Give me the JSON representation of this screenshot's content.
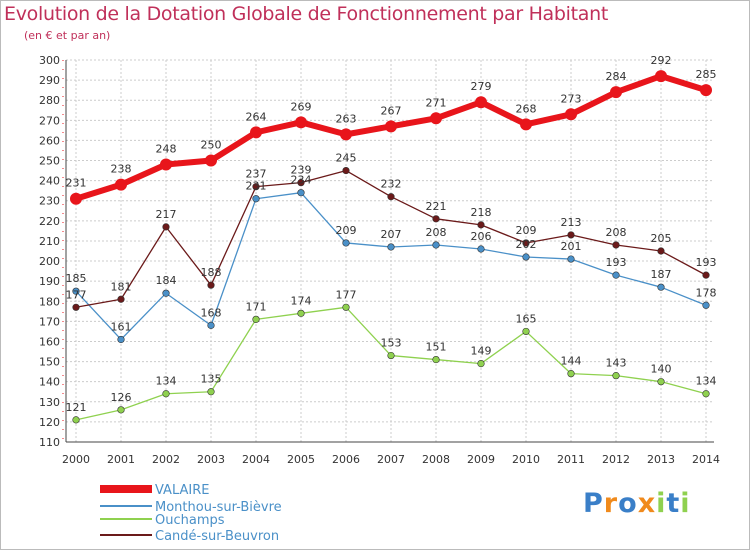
{
  "chart_data": {
    "type": "line",
    "title": "Evolution de la Dotation Globale de Fonctionnement par Habitant",
    "subtitle": "(en € et par an)",
    "x": [
      "2000",
      "2001",
      "2002",
      "2003",
      "2004",
      "2005",
      "2006",
      "2007",
      "2008",
      "2009",
      "2010",
      "2011",
      "2012",
      "2013",
      "2014"
    ],
    "ylim": [
      110,
      300
    ],
    "ytick_step": 10,
    "grid": true,
    "legend_position": "bottom-left",
    "series": [
      {
        "name": "VALAIRE",
        "color": "#e8151b",
        "values": [
          231,
          238,
          248,
          250,
          264,
          269,
          263,
          267,
          271,
          279,
          268,
          273,
          284,
          292,
          285
        ]
      },
      {
        "name": "Monthou-sur-Bièvre",
        "color": "#4a90c8",
        "values": [
          185,
          161,
          184,
          168,
          231,
          234,
          209,
          207,
          208,
          206,
          202,
          201,
          193,
          187,
          178
        ]
      },
      {
        "name": "Ouchamps",
        "color": "#8fd14f",
        "values": [
          121,
          126,
          134,
          135,
          171,
          174,
          177,
          153,
          151,
          149,
          165,
          144,
          143,
          140,
          134
        ]
      },
      {
        "name": "Candé-sur-Beuvron",
        "color": "#6b1a1a",
        "values": [
          177,
          181,
          217,
          188,
          237,
          239,
          245,
          232,
          221,
          218,
          209,
          213,
          208,
          205,
          193
        ]
      }
    ]
  },
  "logo": {
    "letters": [
      "P",
      "r",
      "o",
      "x",
      "i",
      "t",
      "i"
    ],
    "colors": [
      "#3a7fc8",
      "#f08a1c",
      "#3a7fc8",
      "#f08a1c",
      "#8fd14f",
      "#3a7fc8",
      "#8fd14f"
    ]
  }
}
